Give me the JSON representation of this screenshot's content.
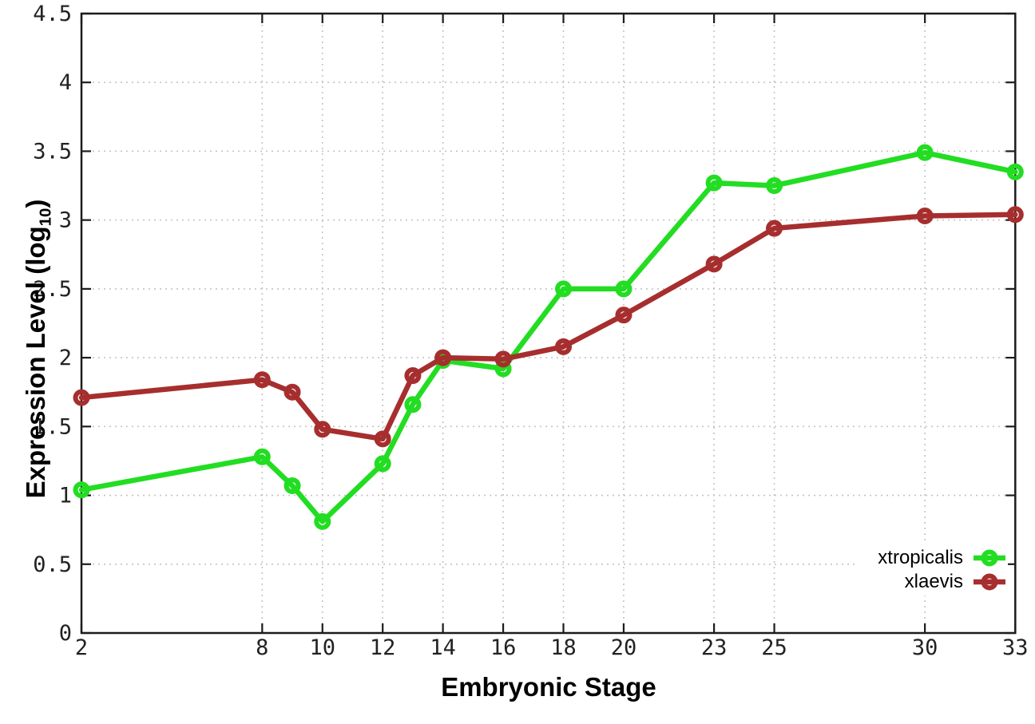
{
  "chart_data": {
    "type": "line",
    "xlabel": "Embryonic Stage",
    "ylabel_prefix": "Expression Level (log",
    "ylabel_sub": "10",
    "ylabel_suffix": ")",
    "x": [
      2,
      8,
      9,
      10,
      12,
      13,
      14,
      16,
      18,
      20,
      23,
      25,
      30,
      33
    ],
    "series": [
      {
        "name": "xtropicalis",
        "color": "#22dd22",
        "values": [
          1.04,
          1.28,
          1.07,
          0.81,
          1.23,
          1.66,
          1.98,
          1.92,
          2.5,
          2.5,
          3.27,
          3.25,
          3.49,
          3.35
        ]
      },
      {
        "name": "xlaevis",
        "color": "#a72e2e",
        "values": [
          1.71,
          1.84,
          1.75,
          1.48,
          1.41,
          1.87,
          2.0,
          1.99,
          2.08,
          2.31,
          2.68,
          2.94,
          3.03,
          3.04
        ]
      }
    ],
    "xlim": [
      2,
      33
    ],
    "ylim": [
      0,
      4.5
    ],
    "x_ticks": [
      2,
      8,
      10,
      12,
      14,
      16,
      18,
      20,
      23,
      25,
      30,
      33
    ],
    "x_tick_labels": [
      "2",
      "8",
      "10",
      "12",
      "14",
      "16",
      "18",
      "20",
      "23",
      "25",
      "30",
      "33"
    ],
    "y_ticks": [
      0,
      0.5,
      1,
      1.5,
      2,
      2.5,
      3,
      3.5,
      4,
      4.5
    ],
    "y_tick_labels": [
      "0",
      "0.5",
      "1",
      "1.5",
      "2",
      "2.5",
      "3",
      "3.5",
      "4",
      "4.5"
    ],
    "grid": true,
    "legend_position": "bottom-right",
    "marker": "open-circle",
    "colors": {
      "grid": "#c4c4c4",
      "border": "#1c1c1c",
      "tick_label": "#222222"
    }
  }
}
